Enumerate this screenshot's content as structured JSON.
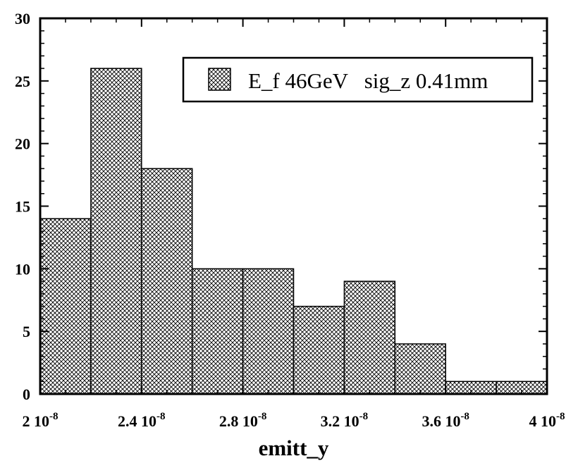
{
  "chart_data": {
    "type": "bar",
    "subtype": "histogram",
    "bin_edges": [
      2e-08,
      2.2e-08,
      2.4e-08,
      2.6e-08,
      2.8e-08,
      3e-08,
      3.2e-08,
      3.4e-08,
      3.6e-08,
      3.8e-08,
      4e-08
    ],
    "values": [
      14,
      26,
      18,
      10,
      10,
      7,
      9,
      4,
      1,
      1
    ],
    "xlim": [
      2e-08,
      4e-08
    ],
    "ylim": [
      0,
      30
    ],
    "xlabel": "emitt_y",
    "ylabel": "",
    "x_ticks": [
      {
        "value": 2e-08,
        "mantissa": "2",
        "exponent": "-8"
      },
      {
        "value": 2.4e-08,
        "mantissa": "2.4",
        "exponent": "-8"
      },
      {
        "value": 2.8e-08,
        "mantissa": "2.8",
        "exponent": "-8"
      },
      {
        "value": 3.2e-08,
        "mantissa": "3.2",
        "exponent": "-8"
      },
      {
        "value": 3.6e-08,
        "mantissa": "3.6",
        "exponent": "-8"
      },
      {
        "value": 4e-08,
        "mantissa": "4",
        "exponent": "-8"
      }
    ],
    "x_tick_base": "10",
    "y_ticks": [
      0,
      5,
      10,
      15,
      20,
      25,
      30
    ],
    "fill_pattern": "crosshatch",
    "bar_color": "#000000",
    "background": "#ffffff",
    "grid": false,
    "legend": {
      "position": "top-right",
      "entries": [
        {
          "label": "E_f 46GeV   sig_z 0.41mm",
          "pattern": "crosshatch"
        }
      ]
    }
  }
}
